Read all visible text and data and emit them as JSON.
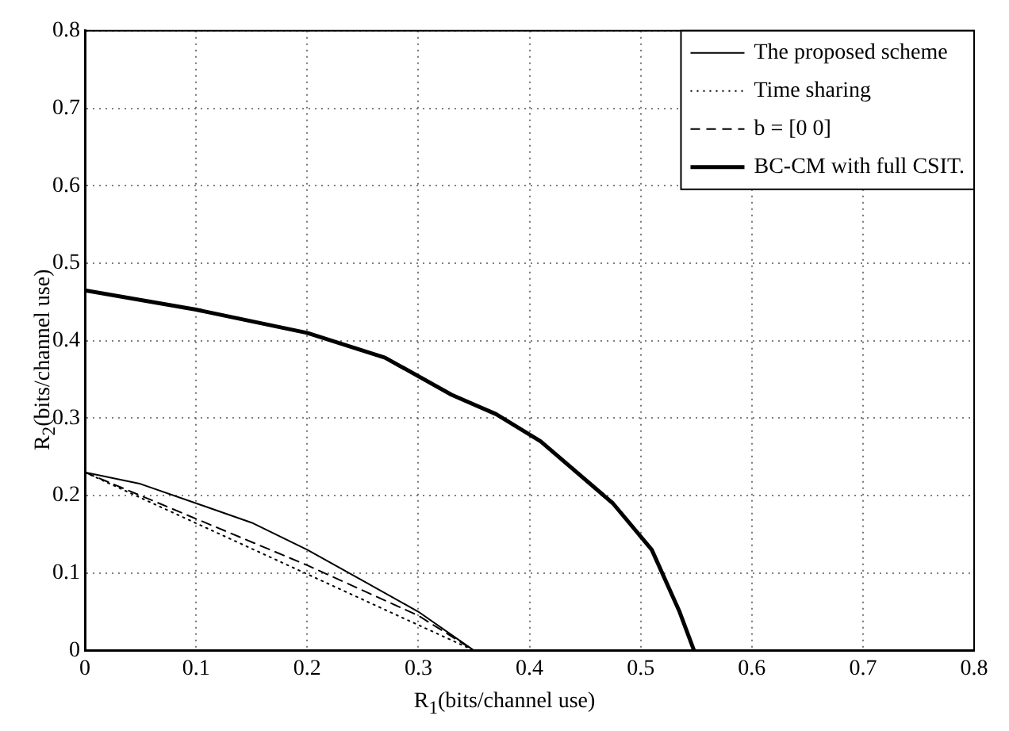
{
  "chart_data": {
    "type": "line",
    "xlabel": "R$_{1}$(bits/channel use)",
    "ylabel": "R$_{2}$(bits/channel use)",
    "xlim": [
      0,
      0.8
    ],
    "ylim": [
      0,
      0.8
    ],
    "xticks": [
      0,
      0.1,
      0.2,
      0.3,
      0.4,
      0.5,
      0.6,
      0.7,
      0.8
    ],
    "yticks": [
      0,
      0.1,
      0.2,
      0.3,
      0.4,
      0.5,
      0.6,
      0.7,
      0.8
    ],
    "grid": true,
    "legend": "top right",
    "marker": "none",
    "series": [
      {
        "name": "The proposed scheme",
        "color": "#000000",
        "line_style": "solid",
        "x": [
          0,
          0.05,
          0.1,
          0.15,
          0.2,
          0.25,
          0.3,
          0.33,
          0.35
        ],
        "values": [
          0.23,
          0.215,
          0.19,
          0.165,
          0.13,
          0.09,
          0.05,
          0.02,
          0
        ]
      },
      {
        "name": "Time sharing",
        "color": "#000000",
        "line_style": "dotted",
        "x": [
          0,
          0.35
        ],
        "values": [
          0.23,
          0
        ]
      },
      {
        "name": "b = [0 0]",
        "color": "#000000",
        "line_style": "dashed",
        "x": [
          0,
          0.1,
          0.2,
          0.3,
          0.35
        ],
        "values": [
          0.23,
          0.17,
          0.11,
          0.045,
          0
        ]
      },
      {
        "name": "BC-CM with full CSIT.",
        "color": "#000000",
        "line_style": "solid",
        "x": [
          0,
          0.1,
          0.2,
          0.27,
          0.33,
          0.37,
          0.41,
          0.475,
          0.51,
          0.535,
          0.548
        ],
        "values": [
          0.465,
          0.44,
          0.41,
          0.378,
          0.33,
          0.305,
          0.27,
          0.19,
          0.13,
          0.05,
          0
        ]
      }
    ]
  }
}
